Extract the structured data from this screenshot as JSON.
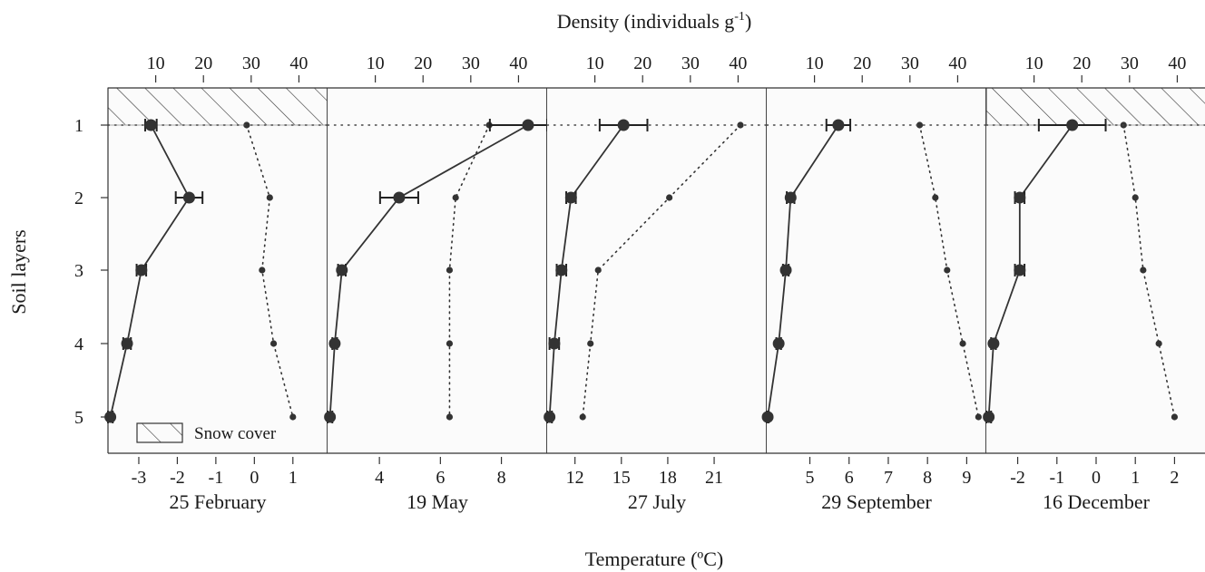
{
  "chart_data": {
    "type": "line",
    "title": "",
    "top_axis_label": "Density (individuals g-1)",
    "top_axis_label_main": "Density (individuals g",
    "top_axis_label_sup": "-1",
    "top_axis_label_tail": ")",
    "xlabel": "Temperature (ºC)",
    "ylabel": "Soil layers",
    "y_categories": [
      "1",
      "2",
      "3",
      "4",
      "5"
    ],
    "density_ticks": [
      10,
      20,
      30,
      40
    ],
    "density_range": [
      0,
      46
    ],
    "legend": {
      "label": "Snow cover",
      "placement": "bottom-left"
    },
    "panels": [
      {
        "label": "25 February",
        "temp_range": [
          -3.8,
          1.9
        ],
        "temp_ticks": [
          -3,
          -2,
          -1,
          0,
          1
        ],
        "snow_cover": true,
        "density": [
          {
            "layer": 1,
            "value": 9,
            "err": 1.2
          },
          {
            "layer": 2,
            "value": 17,
            "err": 2.8
          },
          {
            "layer": 3,
            "value": 7,
            "err": 1
          },
          {
            "layer": 4,
            "value": 4,
            "err": 0.8
          },
          {
            "layer": 5,
            "value": 0.5,
            "err": 0.5
          }
        ],
        "temperature": [
          {
            "layer": 1,
            "value": -0.2
          },
          {
            "layer": 2,
            "value": 0.4
          },
          {
            "layer": 3,
            "value": 0.2
          },
          {
            "layer": 4,
            "value": 0.5
          },
          {
            "layer": 5,
            "value": 1.0
          }
        ]
      },
      {
        "label": "19 May",
        "temp_range": [
          2.3,
          9.5
        ],
        "temp_ticks": [
          4,
          6,
          8
        ],
        "snow_cover": false,
        "density": [
          {
            "layer": 1,
            "value": 42,
            "err": 8
          },
          {
            "layer": 2,
            "value": 15,
            "err": 4
          },
          {
            "layer": 3,
            "value": 3,
            "err": 0.8
          },
          {
            "layer": 4,
            "value": 1.5,
            "err": 0.5
          },
          {
            "layer": 5,
            "value": 0.5,
            "err": 0.5
          }
        ],
        "temperature": [
          {
            "layer": 1,
            "value": 7.6
          },
          {
            "layer": 2,
            "value": 6.5
          },
          {
            "layer": 3,
            "value": 6.3
          },
          {
            "layer": 4,
            "value": 6.3
          },
          {
            "layer": 5,
            "value": 6.3
          }
        ]
      },
      {
        "label": "27 July",
        "temp_range": [
          10.2,
          24.4
        ],
        "temp_ticks": [
          12,
          15,
          18,
          21
        ],
        "snow_cover": false,
        "density": [
          {
            "layer": 1,
            "value": 16,
            "err": 5
          },
          {
            "layer": 2,
            "value": 5,
            "err": 1
          },
          {
            "layer": 3,
            "value": 3,
            "err": 1
          },
          {
            "layer": 4,
            "value": 1.5,
            "err": 1
          },
          {
            "layer": 5,
            "value": 0.5,
            "err": 0.5
          }
        ],
        "temperature": [
          {
            "layer": 1,
            "value": 22.7
          },
          {
            "layer": 2,
            "value": 18.1
          },
          {
            "layer": 3,
            "value": 13.5
          },
          {
            "layer": 4,
            "value": 13.0
          },
          {
            "layer": 5,
            "value": 12.5
          }
        ]
      },
      {
        "label": "29 September",
        "temp_range": [
          3.9,
          9.5
        ],
        "temp_ticks": [
          5,
          6,
          7,
          8,
          9
        ],
        "snow_cover": false,
        "density": [
          {
            "layer": 1,
            "value": 15,
            "err": 2.5
          },
          {
            "layer": 2,
            "value": 5,
            "err": 0.8
          },
          {
            "layer": 3,
            "value": 4,
            "err": 0.6
          },
          {
            "layer": 4,
            "value": 2.5,
            "err": 0.5
          },
          {
            "layer": 5,
            "value": 0.2,
            "err": 0.2
          }
        ],
        "temperature": [
          {
            "layer": 1,
            "value": 7.8
          },
          {
            "layer": 2,
            "value": 8.2
          },
          {
            "layer": 3,
            "value": 8.5
          },
          {
            "layer": 4,
            "value": 8.9
          },
          {
            "layer": 5,
            "value": 9.3
          }
        ]
      },
      {
        "label": "16 December",
        "temp_range": [
          -2.8,
          2.8
        ],
        "temp_ticks": [
          -2,
          -1,
          0,
          1,
          2
        ],
        "snow_cover": true,
        "density": [
          {
            "layer": 1,
            "value": 18,
            "err": 7
          },
          {
            "layer": 2,
            "value": 7,
            "err": 1
          },
          {
            "layer": 3,
            "value": 7,
            "err": 1
          },
          {
            "layer": 4,
            "value": 1.5,
            "err": 0.5
          },
          {
            "layer": 5,
            "value": 0.5,
            "err": 0.5
          }
        ],
        "temperature": [
          {
            "layer": 1,
            "value": 0.7
          },
          {
            "layer": 2,
            "value": 1.0
          },
          {
            "layer": 3,
            "value": 1.2
          },
          {
            "layer": 4,
            "value": 1.6
          },
          {
            "layer": 5,
            "value": 2.0
          }
        ]
      }
    ]
  }
}
